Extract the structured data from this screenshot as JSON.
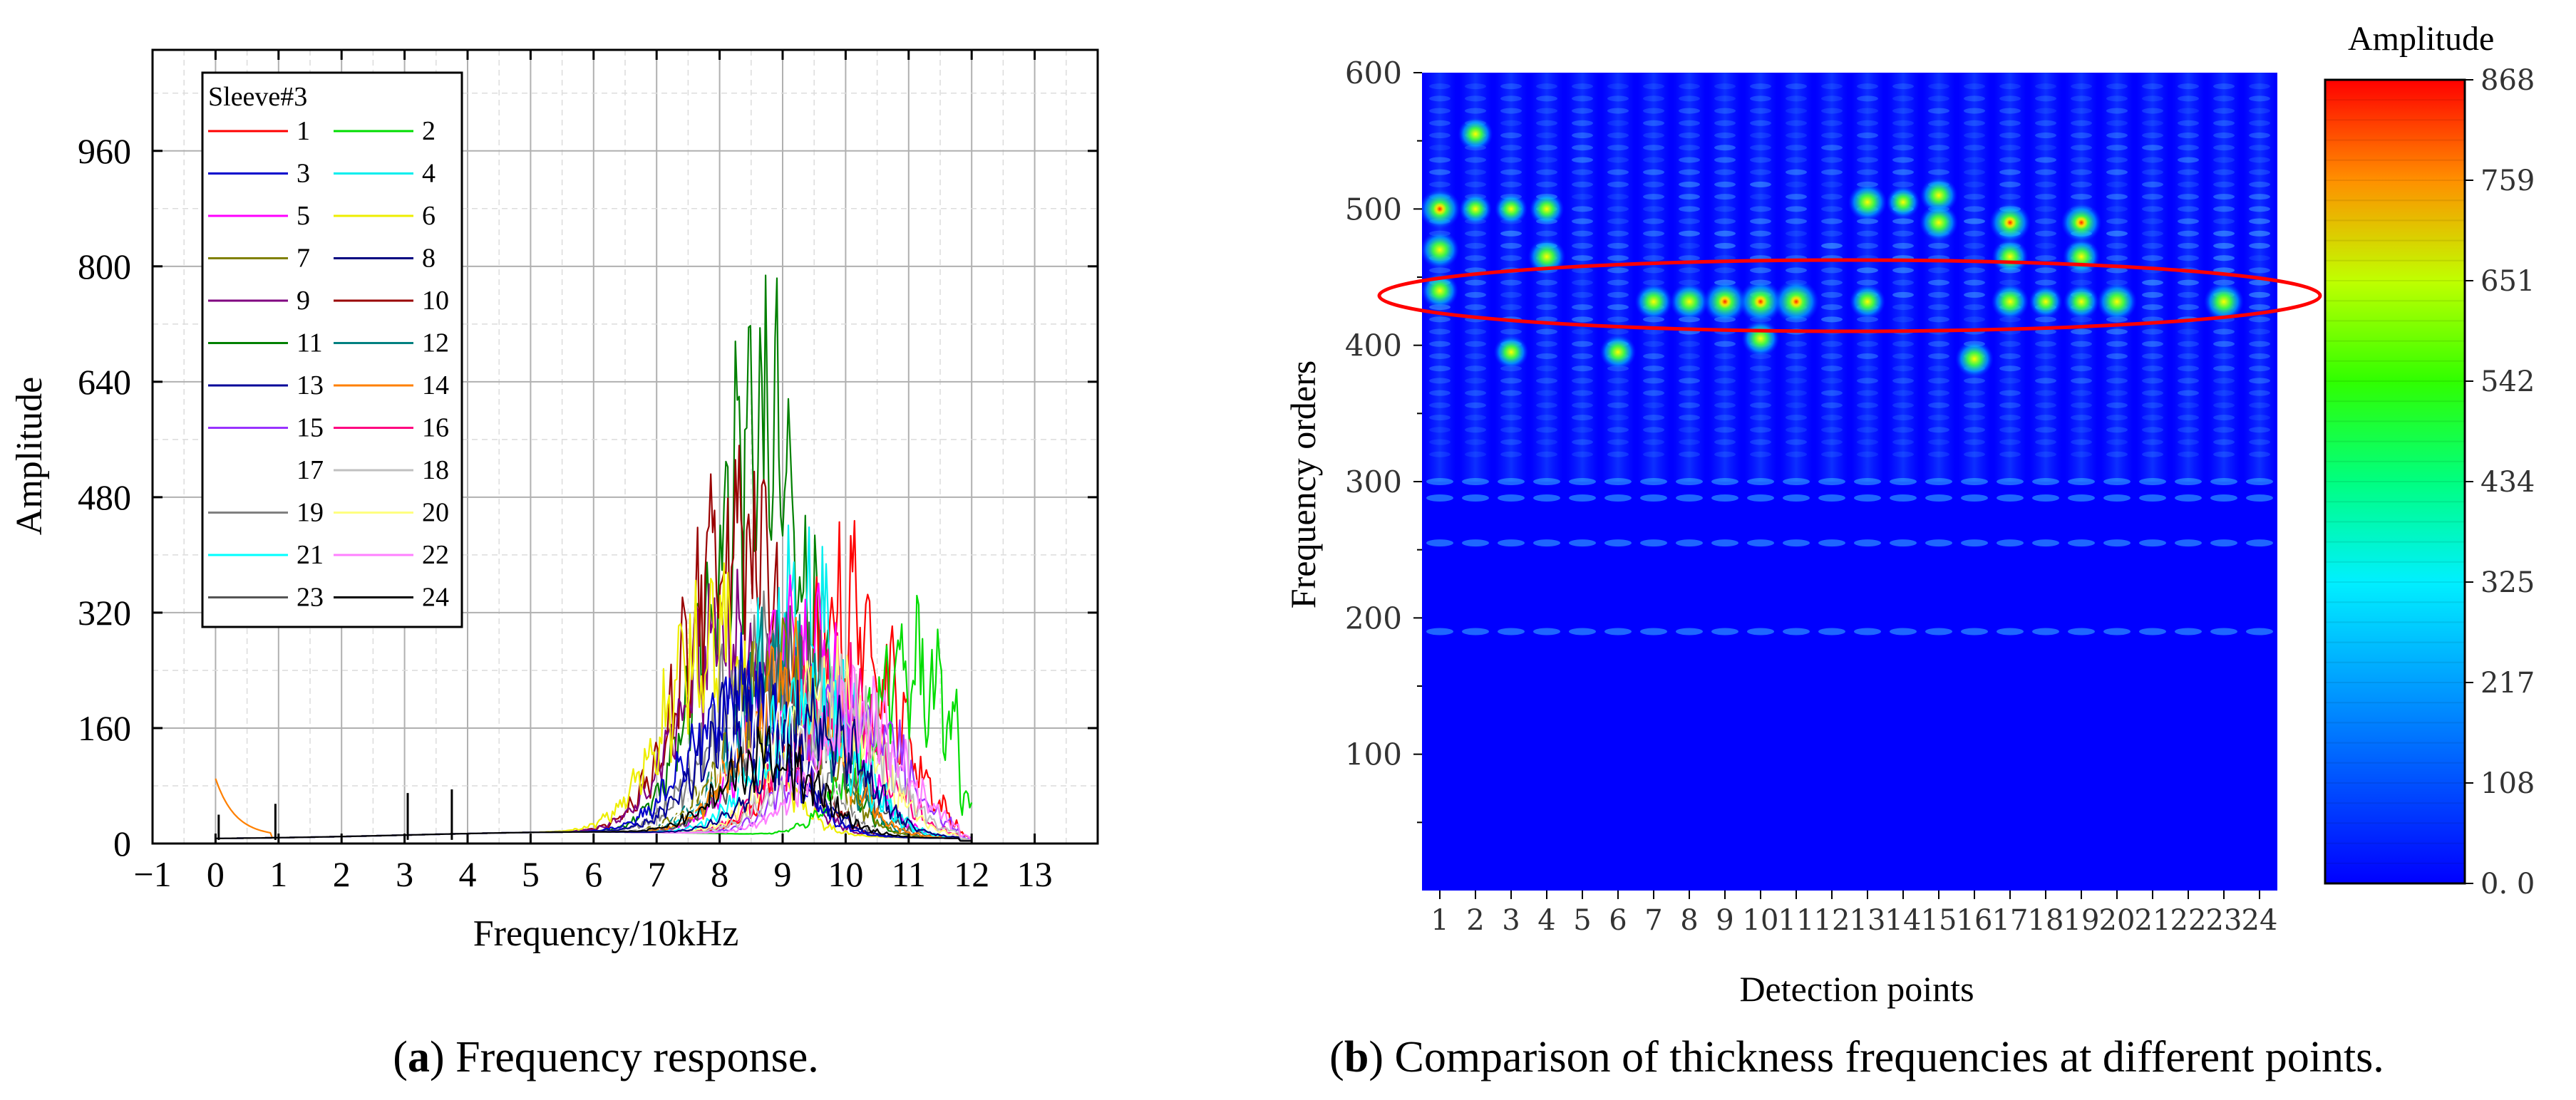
{
  "figure": {
    "panel_a_caption": {
      "letter": "a",
      "text": "Frequency response."
    },
    "panel_b_caption": {
      "letter": "b",
      "text": "Comparison of thickness frequencies at different points."
    }
  },
  "chart_data": [
    {
      "id": "panel-a",
      "type": "line",
      "title": "",
      "xlabel": "Frequency/10kHz",
      "ylabel": "Amplitude",
      "xlim": [
        -1,
        14
      ],
      "ylim": [
        0,
        1100
      ],
      "xticks": [
        -1,
        0,
        1,
        2,
        3,
        4,
        5,
        6,
        7,
        8,
        9,
        10,
        11,
        12,
        13
      ],
      "yticks": [
        0,
        160,
        320,
        480,
        640,
        800,
        960
      ],
      "grid": true,
      "legend_title": "Sleeve#3",
      "legend_position": "top-left",
      "series": [
        {
          "name": "1",
          "color": "#ff0000",
          "peak_x": 10.05,
          "peak_y": 480
        },
        {
          "name": "2",
          "color": "#00dd00",
          "peak_x": 11.05,
          "peak_y": 355
        },
        {
          "name": "3",
          "color": "#0000cc",
          "peak_x": 8.3,
          "peak_y": 300
        },
        {
          "name": "4",
          "color": "#00eeee",
          "peak_x": 9.25,
          "peak_y": 480
        },
        {
          "name": "5",
          "color": "#ff00ff",
          "peak_x": 9.3,
          "peak_y": 390
        },
        {
          "name": "6",
          "color": "#eeee00",
          "peak_x": 7.9,
          "peak_y": 420
        },
        {
          "name": "7",
          "color": "#808000",
          "peak_x": 8.9,
          "peak_y": 330
        },
        {
          "name": "8",
          "color": "#000080",
          "peak_x": 9.5,
          "peak_y": 240
        },
        {
          "name": "9",
          "color": "#800080",
          "peak_x": 8.15,
          "peak_y": 430
        },
        {
          "name": "10",
          "color": "#990000",
          "peak_x": 8.25,
          "peak_y": 640
        },
        {
          "name": "11",
          "color": "#008000",
          "peak_x": 8.62,
          "peak_y": 870
        },
        {
          "name": "12",
          "color": "#008080",
          "peak_x": 9.0,
          "peak_y": 350
        },
        {
          "name": "13",
          "color": "#000099",
          "peak_x": 8.5,
          "peak_y": 260
        },
        {
          "name": "14",
          "color": "#ff8000",
          "peak_x": 9.1,
          "peak_y": 320
        },
        {
          "name": "15",
          "color": "#9933ff",
          "peak_x": 10.1,
          "peak_y": 290
        },
        {
          "name": "16",
          "color": "#ff0080",
          "peak_x": 9.8,
          "peak_y": 300
        },
        {
          "name": "17",
          "color": "#ffffff",
          "peak_x": 8.8,
          "peak_y": 220
        },
        {
          "name": "18",
          "color": "#c0c0c0",
          "peak_x": 9.9,
          "peak_y": 280
        },
        {
          "name": "19",
          "color": "#808080",
          "peak_x": 8.6,
          "peak_y": 360
        },
        {
          "name": "20",
          "color": "#ffff80",
          "peak_x": 9.7,
          "peak_y": 300
        },
        {
          "name": "21",
          "color": "#00ffff",
          "peak_x": 9.4,
          "peak_y": 260
        },
        {
          "name": "22",
          "color": "#ff80ff",
          "peak_x": 10.2,
          "peak_y": 250
        },
        {
          "name": "23",
          "color": "#555555",
          "peak_x": 9.2,
          "peak_y": 330
        },
        {
          "name": "24",
          "color": "#000000",
          "peak_x": 8.8,
          "peak_y": 160
        }
      ]
    },
    {
      "id": "panel-b",
      "type": "heatmap",
      "title": "",
      "xlabel": "Detection points",
      "ylabel": "Frequency orders",
      "x_categories": [
        "1",
        "2",
        "3",
        "4",
        "5",
        "6",
        "7",
        "8",
        "9",
        "10",
        "11",
        "12",
        "13",
        "14",
        "15",
        "16",
        "17",
        "18",
        "19",
        "20",
        "21",
        "22",
        "23",
        "24"
      ],
      "ylim": [
        0,
        600
      ],
      "yticks": [
        100,
        200,
        300,
        400,
        500,
        600
      ],
      "colorbar_title": "Amplitude",
      "colorbar_ticks": [
        "868",
        "759",
        "651",
        "542",
        "434",
        "325",
        "217",
        "108",
        "0. 0"
      ],
      "colorbar_range": [
        0,
        868
      ],
      "highlight_ellipse_center_order": 435,
      "hotspots": [
        {
          "point": 1,
          "order": 500,
          "value": 650
        },
        {
          "point": 1,
          "order": 470,
          "value": 560
        },
        {
          "point": 1,
          "order": 440,
          "value": 500
        },
        {
          "point": 2,
          "order": 555,
          "value": 430
        },
        {
          "point": 2,
          "order": 500,
          "value": 350
        },
        {
          "point": 3,
          "order": 395,
          "value": 420
        },
        {
          "point": 3,
          "order": 500,
          "value": 350
        },
        {
          "point": 4,
          "order": 465,
          "value": 520
        },
        {
          "point": 4,
          "order": 500,
          "value": 420
        },
        {
          "point": 6,
          "order": 395,
          "value": 470
        },
        {
          "point": 7,
          "order": 432,
          "value": 520
        },
        {
          "point": 8,
          "order": 432,
          "value": 550
        },
        {
          "point": 9,
          "order": 432,
          "value": 720
        },
        {
          "point": 10,
          "order": 432,
          "value": 740
        },
        {
          "point": 10,
          "order": 405,
          "value": 520
        },
        {
          "point": 11,
          "order": 432,
          "value": 800
        },
        {
          "point": 13,
          "order": 505,
          "value": 560
        },
        {
          "point": 13,
          "order": 432,
          "value": 460
        },
        {
          "point": 14,
          "order": 505,
          "value": 380
        },
        {
          "point": 15,
          "order": 510,
          "value": 520
        },
        {
          "point": 15,
          "order": 490,
          "value": 550
        },
        {
          "point": 16,
          "order": 390,
          "value": 540
        },
        {
          "point": 17,
          "order": 490,
          "value": 640
        },
        {
          "point": 17,
          "order": 465,
          "value": 480
        },
        {
          "point": 17,
          "order": 432,
          "value": 520
        },
        {
          "point": 18,
          "order": 432,
          "value": 380
        },
        {
          "point": 19,
          "order": 490,
          "value": 620
        },
        {
          "point": 19,
          "order": 465,
          "value": 500
        },
        {
          "point": 19,
          "order": 432,
          "value": 460
        },
        {
          "point": 20,
          "order": 432,
          "value": 600
        },
        {
          "point": 23,
          "order": 432,
          "value": 600
        }
      ]
    }
  ]
}
